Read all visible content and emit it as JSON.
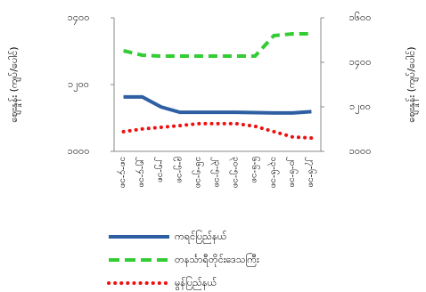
{
  "chart_data": {
    "type": "line",
    "y_label": "ဈေးနှုန်း (ကျပ်/ပေါင်)",
    "y2_label": "ဈေးနှုန်း (ကျပ်/ပေါင်)",
    "categories": [
      "၁၈-၄-၁၈",
      "၂၅-၄-၁၈",
      "၂-၅-၁၈",
      "၉-၅-၁၈",
      "၁၆-၅-၁၈",
      "၂၃-၅-၁၈",
      "၃၀-၅-၁၈",
      "၆-၆-၁၈",
      "၁၃-၆-၁၈",
      "၂၀-၆-၁၈",
      "၂၇-၆-၁၈"
    ],
    "ylim": [
      1000,
      1400
    ],
    "yticks": [
      {
        "value": 1000,
        "label": "၁၀၀၀"
      },
      {
        "value": 1200,
        "label": "၁၂၀၀"
      },
      {
        "value": 1400,
        "label": "၁၄၀၀"
      }
    ],
    "y2lim": [
      1000,
      1600
    ],
    "y2ticks": [
      {
        "value": 1000,
        "label": "၁၀၀၀"
      },
      {
        "value": 1200,
        "label": "၁၂၀၀"
      },
      {
        "value": 1400,
        "label": "၁၄၀၀"
      },
      {
        "value": 1600,
        "label": "၁၆၀၀"
      }
    ],
    "series": [
      {
        "name": "ကရင်ပြည်နယ်",
        "color": "#2e5fa3",
        "dash": "solid",
        "values": [
          1163,
          1163,
          1133,
          1117,
          1117,
          1117,
          1117,
          1116,
          1115,
          1115,
          1119
        ]
      },
      {
        "name": "တနင်္သာရီတိုင်းဒေသကြီး",
        "color": "#33cc33",
        "dash": "dashed",
        "axis": "y2",
        "values": [
          1452,
          1432,
          1428,
          1428,
          1428,
          1428,
          1428,
          1428,
          1520,
          1528,
          1528
        ]
      },
      {
        "name": "မွန်ပြည်နယ်",
        "color": "#ee1111",
        "dash": "dotted",
        "values": [
          1059,
          1067,
          1072,
          1077,
          1083,
          1083,
          1083,
          1075,
          1059,
          1043,
          1040
        ]
      }
    ]
  }
}
